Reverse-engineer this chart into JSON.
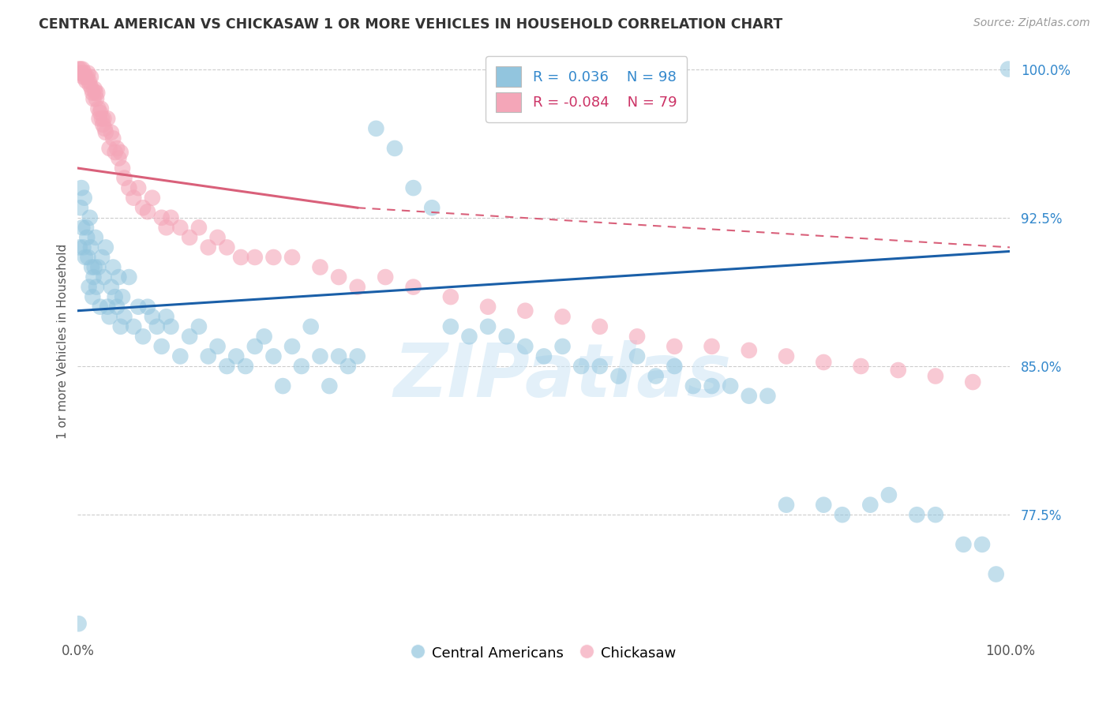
{
  "title": "CENTRAL AMERICAN VS CHICKASAW 1 OR MORE VEHICLES IN HOUSEHOLD CORRELATION CHART",
  "source": "Source: ZipAtlas.com",
  "ylabel": "1 or more Vehicles in Household",
  "xlim": [
    0.0,
    1.0
  ],
  "ylim": [
    0.715,
    1.01
  ],
  "yticks": [
    0.775,
    0.85,
    0.925,
    1.0
  ],
  "ytick_labels": [
    "77.5%",
    "85.0%",
    "92.5%",
    "100.0%"
  ],
  "legend_r_blue": "R =  0.036",
  "legend_n_blue": "N = 98",
  "legend_r_pink": "R = -0.084",
  "legend_n_pink": "N = 79",
  "blue_color": "#92c5de",
  "pink_color": "#f4a6b8",
  "blue_line_color": "#1a5fa8",
  "pink_line_color": "#d9607a",
  "watermark": "ZIPatlas",
  "blue_trend": [
    0.0,
    1.0,
    0.878,
    0.908
  ],
  "pink_solid": [
    0.0,
    0.3,
    0.95,
    0.93
  ],
  "pink_dash": [
    0.3,
    1.0,
    0.93,
    0.91
  ],
  "blue_x": [
    0.001,
    0.002,
    0.003,
    0.004,
    0.005,
    0.006,
    0.007,
    0.008,
    0.009,
    0.01,
    0.011,
    0.012,
    0.013,
    0.014,
    0.015,
    0.016,
    0.017,
    0.018,
    0.019,
    0.02,
    0.022,
    0.024,
    0.026,
    0.028,
    0.03,
    0.032,
    0.034,
    0.036,
    0.038,
    0.04,
    0.042,
    0.044,
    0.046,
    0.048,
    0.05,
    0.055,
    0.06,
    0.065,
    0.07,
    0.075,
    0.08,
    0.085,
    0.09,
    0.095,
    0.1,
    0.11,
    0.12,
    0.13,
    0.14,
    0.15,
    0.16,
    0.17,
    0.18,
    0.19,
    0.2,
    0.21,
    0.22,
    0.23,
    0.24,
    0.25,
    0.26,
    0.27,
    0.28,
    0.29,
    0.3,
    0.32,
    0.34,
    0.36,
    0.38,
    0.4,
    0.42,
    0.44,
    0.46,
    0.48,
    0.5,
    0.52,
    0.54,
    0.56,
    0.58,
    0.6,
    0.62,
    0.64,
    0.66,
    0.68,
    0.7,
    0.72,
    0.74,
    0.76,
    0.8,
    0.82,
    0.85,
    0.87,
    0.9,
    0.92,
    0.95,
    0.97,
    0.985,
    0.998
  ],
  "blue_y": [
    0.72,
    0.91,
    0.93,
    0.94,
    0.92,
    0.91,
    0.935,
    0.905,
    0.92,
    0.915,
    0.905,
    0.89,
    0.925,
    0.91,
    0.9,
    0.885,
    0.895,
    0.9,
    0.915,
    0.89,
    0.9,
    0.88,
    0.905,
    0.895,
    0.91,
    0.88,
    0.875,
    0.89,
    0.9,
    0.885,
    0.88,
    0.895,
    0.87,
    0.885,
    0.875,
    0.895,
    0.87,
    0.88,
    0.865,
    0.88,
    0.875,
    0.87,
    0.86,
    0.875,
    0.87,
    0.855,
    0.865,
    0.87,
    0.855,
    0.86,
    0.85,
    0.855,
    0.85,
    0.86,
    0.865,
    0.855,
    0.84,
    0.86,
    0.85,
    0.87,
    0.855,
    0.84,
    0.855,
    0.85,
    0.855,
    0.97,
    0.96,
    0.94,
    0.93,
    0.87,
    0.865,
    0.87,
    0.865,
    0.86,
    0.855,
    0.86,
    0.85,
    0.85,
    0.845,
    0.855,
    0.845,
    0.85,
    0.84,
    0.84,
    0.84,
    0.835,
    0.835,
    0.78,
    0.78,
    0.775,
    0.78,
    0.785,
    0.775,
    0.775,
    0.76,
    0.76,
    0.745,
    1.0
  ],
  "pink_x": [
    0.001,
    0.002,
    0.003,
    0.004,
    0.005,
    0.006,
    0.007,
    0.008,
    0.009,
    0.01,
    0.011,
    0.012,
    0.013,
    0.014,
    0.015,
    0.016,
    0.017,
    0.018,
    0.019,
    0.02,
    0.021,
    0.022,
    0.023,
    0.024,
    0.025,
    0.026,
    0.027,
    0.028,
    0.029,
    0.03,
    0.032,
    0.034,
    0.036,
    0.038,
    0.04,
    0.042,
    0.044,
    0.046,
    0.048,
    0.05,
    0.055,
    0.06,
    0.065,
    0.07,
    0.075,
    0.08,
    0.09,
    0.095,
    0.1,
    0.11,
    0.12,
    0.13,
    0.14,
    0.15,
    0.16,
    0.175,
    0.19,
    0.21,
    0.23,
    0.26,
    0.28,
    0.3,
    0.33,
    0.36,
    0.4,
    0.44,
    0.48,
    0.52,
    0.56,
    0.6,
    0.64,
    0.68,
    0.72,
    0.76,
    0.8,
    0.84,
    0.88,
    0.92,
    0.96
  ],
  "pink_y": [
    1.0,
    0.998,
    1.0,
    0.998,
    1.0,
    0.996,
    0.998,
    0.996,
    0.994,
    0.996,
    0.998,
    0.994,
    0.992,
    0.996,
    0.99,
    0.988,
    0.985,
    0.99,
    0.988,
    0.985,
    0.988,
    0.98,
    0.975,
    0.978,
    0.98,
    0.975,
    0.972,
    0.975,
    0.97,
    0.968,
    0.975,
    0.96,
    0.968,
    0.965,
    0.958,
    0.96,
    0.955,
    0.958,
    0.95,
    0.945,
    0.94,
    0.935,
    0.94,
    0.93,
    0.928,
    0.935,
    0.925,
    0.92,
    0.925,
    0.92,
    0.915,
    0.92,
    0.91,
    0.915,
    0.91,
    0.905,
    0.905,
    0.905,
    0.905,
    0.9,
    0.895,
    0.89,
    0.895,
    0.89,
    0.885,
    0.88,
    0.878,
    0.875,
    0.87,
    0.865,
    0.86,
    0.86,
    0.858,
    0.855,
    0.852,
    0.85,
    0.848,
    0.845,
    0.842
  ]
}
